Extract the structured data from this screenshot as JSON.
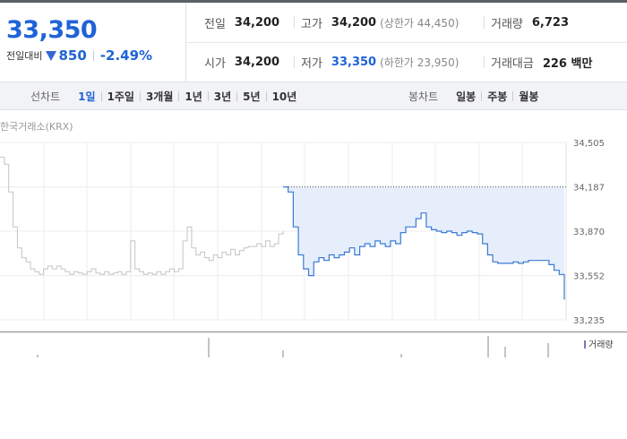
{
  "price": {
    "current": "33,350",
    "change_label": "전일대비",
    "change_value": "850",
    "change_rate": "-2.49%"
  },
  "stats": {
    "prev_close": {
      "label": "전일",
      "value": "34,200"
    },
    "high": {
      "label": "고가",
      "value": "34,200",
      "sub": "(상한가 44,450)"
    },
    "volume": {
      "label": "거래량",
      "value": "6,723"
    },
    "open": {
      "label": "시가",
      "value": "34,200"
    },
    "low": {
      "label": "저가",
      "value": "33,350",
      "sub": "(하한가 23,950)"
    },
    "trade_amount": {
      "label": "거래대금",
      "value": "226 백만"
    }
  },
  "period_tabs": {
    "title": "선차트",
    "items": [
      "1일",
      "1주일",
      "3개월",
      "1년",
      "3년",
      "5년",
      "10년"
    ],
    "active": "1일"
  },
  "candle_tabs": {
    "title": "봉차트",
    "items": [
      "일봉",
      "주봉",
      "월봉"
    ]
  },
  "exchange_label": "한국거래소(KRX)",
  "volume_legend": "거래량",
  "colors": {
    "accent": "#1f63d8",
    "today_line": "#3a7bd5",
    "fill": "#e6eefb",
    "prev_line": "#c4c4c4"
  },
  "chart_data": {
    "type": "line",
    "y_ticks": [
      "34,505",
      "34,187",
      "33,870",
      "33,552",
      "33,235"
    ],
    "ylim": [
      33235,
      34505
    ],
    "reference_line": 34187,
    "series": [
      {
        "values": [
          34400,
          34350,
          34150,
          33900,
          33750,
          33680,
          33650,
          33600,
          33580,
          33560,
          33600,
          33620,
          33600,
          33620,
          33600,
          33580,
          33560,
          33580,
          33570,
          33560,
          33580,
          33600,
          33570,
          33560,
          33580,
          33560,
          33570,
          33580,
          33560,
          33580,
          33800,
          33600,
          33580,
          33560,
          33570,
          33560,
          33580,
          33560,
          33580,
          33600,
          33580,
          33600,
          33800,
          33900,
          33750,
          33700,
          33720,
          33680,
          33660,
          33700,
          33680,
          33720,
          33700,
          33740,
          33700,
          33730,
          33750,
          33760,
          33760,
          33780,
          33760,
          33800,
          33760,
          33780,
          33850,
          33870
        ]
      },
      {
        "values": [
          34187,
          34150,
          33900,
          33700,
          33600,
          33552,
          33650,
          33680,
          33660,
          33700,
          33680,
          33700,
          33720,
          33750,
          33700,
          33760,
          33780,
          33760,
          33800,
          33780,
          33760,
          33800,
          33780,
          33860,
          33900,
          33900,
          33960,
          34000,
          33900,
          33880,
          33870,
          33860,
          33870,
          33860,
          33840,
          33860,
          33870,
          33860,
          33850,
          33780,
          33700,
          33650,
          33640,
          33640,
          33640,
          33650,
          33640,
          33650,
          33660,
          33660,
          33660,
          33660,
          33630,
          33590,
          33560,
          33380
        ]
      }
    ]
  }
}
